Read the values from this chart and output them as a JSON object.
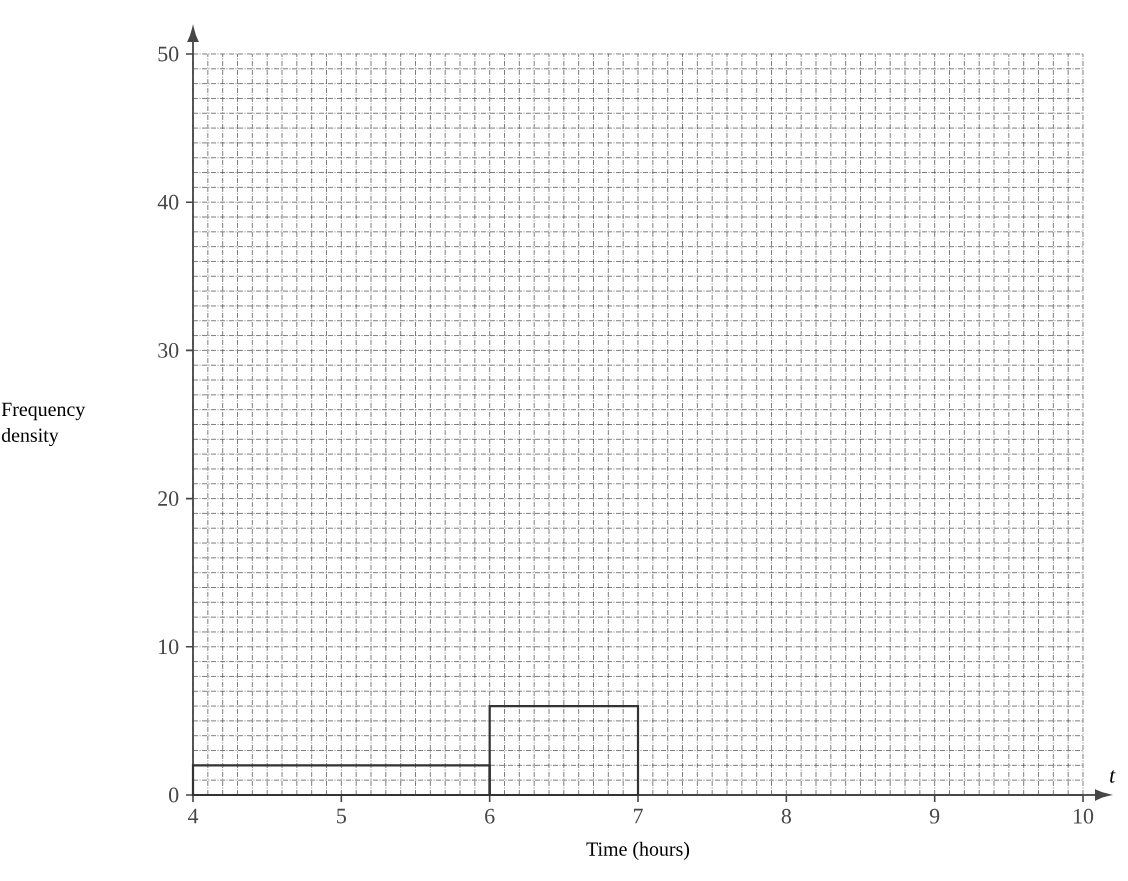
{
  "chart_data": {
    "type": "histogram",
    "xlabel": "Time (hours)",
    "ylabel": "Frequency density",
    "bins": [
      4,
      6,
      7
    ],
    "values": [
      2,
      6
    ],
    "color": "#333333",
    "xlim": [
      4,
      10
    ],
    "ylim": [
      0,
      50
    ],
    "xticks": [
      4,
      5,
      6,
      7,
      8,
      9,
      10
    ],
    "yticks": [
      0,
      10,
      20,
      30,
      40,
      50
    ],
    "grid": true,
    "annotations": [
      "t"
    ]
  }
}
